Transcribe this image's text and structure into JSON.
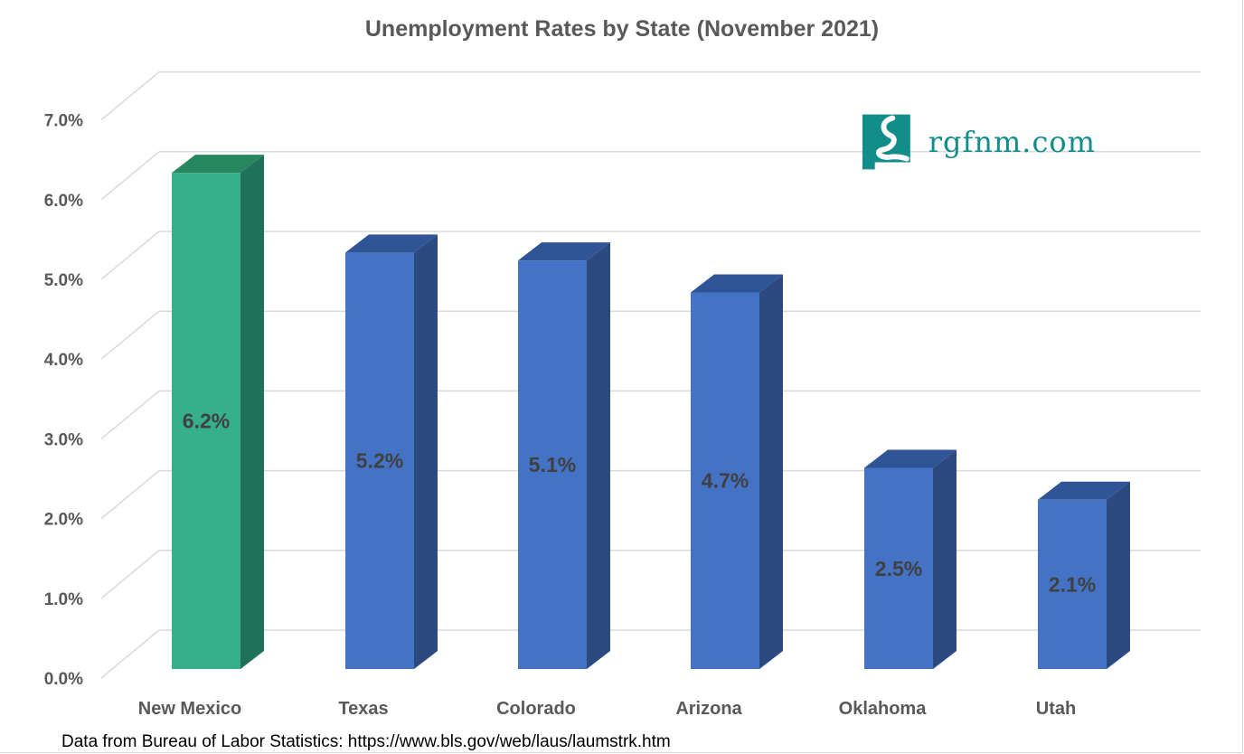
{
  "chart_data": {
    "type": "bar",
    "title": "Unemployment Rates by State (November 2021)",
    "categories": [
      "New Mexico",
      "Texas",
      "Colorado",
      "Arizona",
      "Oklahoma",
      "Utah"
    ],
    "values": [
      6.2,
      5.2,
      5.1,
      4.7,
      2.5,
      2.1
    ],
    "data_labels": [
      "6.2%",
      "5.2%",
      "5.1%",
      "4.7%",
      "2.5%",
      "2.1%"
    ],
    "ylim": [
      0,
      7
    ],
    "y_ticks": [
      "0.0%",
      "1.0%",
      "2.0%",
      "3.0%",
      "4.0%",
      "5.0%",
      "6.0%",
      "7.0%"
    ],
    "grid": true,
    "style": "3d-column",
    "colors": {
      "highlight_front": "#36b08a",
      "highlight_side": "#1f7259",
      "highlight_top": "#26875f",
      "default_front": "#4472c4",
      "default_side": "#2c4a80",
      "default_top": "#2f5597",
      "grid": "#d9d9d9",
      "axis_text": "#595959",
      "label_text": "#404040"
    }
  },
  "source_note": "Data from Bureau of Labor Statistics: https://www.bls.gov/web/laus/laumstrk.htm",
  "logo": {
    "text": "rgfnm.com",
    "color": "#128d8a",
    "icon": "new-mexico-river-icon"
  }
}
